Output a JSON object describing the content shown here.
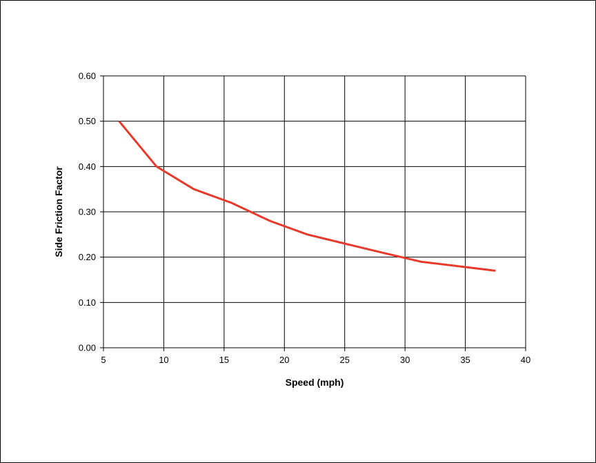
{
  "chart_data": {
    "type": "line",
    "title": "",
    "xlabel": "Speed (mph)",
    "ylabel": "Side Friction Factor",
    "xlim": [
      5,
      40
    ],
    "ylim": [
      0,
      0.6
    ],
    "x_ticks": [
      "5",
      "10",
      "15",
      "20",
      "25",
      "30",
      "35",
      "40"
    ],
    "y_ticks": [
      "0.00",
      "0.10",
      "0.20",
      "0.30",
      "0.40",
      "0.50",
      "0.60"
    ],
    "grid": true,
    "legend": "none",
    "line_color": "#e8392b",
    "series": [
      {
        "x": [
          6.3,
          9.4,
          12.5,
          15.6,
          18.8,
          21.9,
          25.0,
          28.1,
          31.3,
          34.4,
          37.5
        ],
        "y": [
          0.5,
          0.4,
          0.35,
          0.32,
          0.28,
          0.25,
          0.23,
          0.21,
          0.19,
          0.18,
          0.17
        ]
      }
    ]
  }
}
